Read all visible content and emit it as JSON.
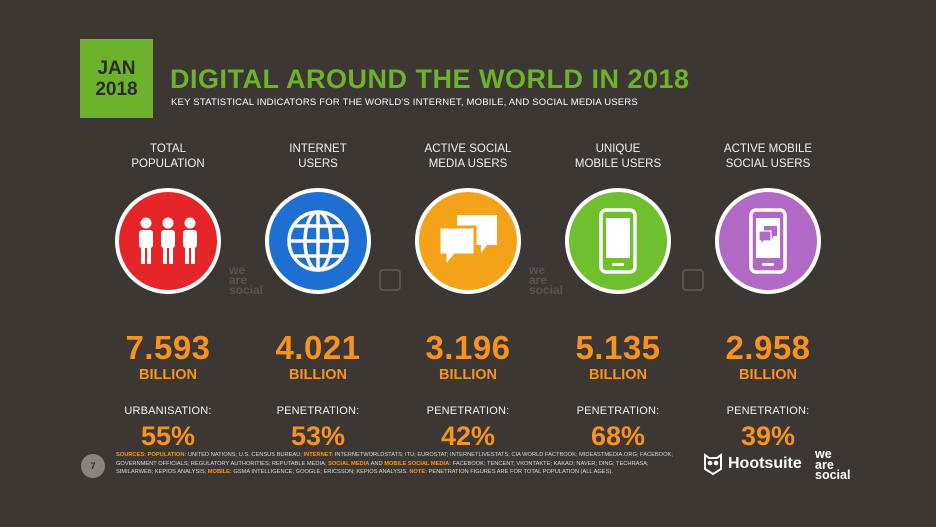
{
  "badge": {
    "month": "JAN",
    "year": "2018"
  },
  "title": "DIGITAL AROUND THE WORLD IN 2018",
  "subtitle": "KEY STATISTICAL INDICATORS FOR THE WORLD'S INTERNET, MOBILE, AND SOCIAL MEDIA USERS",
  "colors": {
    "green": "#6cb32b",
    "orange": "#f7931e",
    "red": "#e52528",
    "blue": "#1f6fd2",
    "amber": "#f5a21b",
    "lime": "#6fbf2f",
    "purple": "#b269c5"
  },
  "columns": [
    {
      "label": "TOTAL\nPOPULATION",
      "icon": "people-icon",
      "color": "#e52528",
      "value": "7.593",
      "unit": "BILLION",
      "metric_label": "URBANISATION:",
      "metric_value": "55%"
    },
    {
      "label": "INTERNET\nUSERS",
      "icon": "globe-icon",
      "color": "#1f6fd2",
      "value": "4.021",
      "unit": "BILLION",
      "metric_label": "PENETRATION:",
      "metric_value": "53%"
    },
    {
      "label": "ACTIVE SOCIAL\nMEDIA USERS",
      "icon": "chat-bubbles-icon",
      "color": "#f5a21b",
      "value": "3.196",
      "unit": "BILLION",
      "metric_label": "PENETRATION:",
      "metric_value": "42%"
    },
    {
      "label": "UNIQUE\nMOBILE USERS",
      "icon": "smartphone-icon",
      "color": "#6fbf2f",
      "value": "5.135",
      "unit": "BILLION",
      "metric_label": "PENETRATION:",
      "metric_value": "68%"
    },
    {
      "label": "ACTIVE MOBILE\nSOCIAL USERS",
      "icon": "mobile-social-icon",
      "color": "#b269c5",
      "value": "2.958",
      "unit": "BILLION",
      "metric_label": "PENETRATION:",
      "metric_value": "39%"
    }
  ],
  "watermark": {
    "text_1": "we",
    "text_2": "are",
    "text_3": "social"
  },
  "footer": {
    "page_number": "7",
    "sources": {
      "h1": "SOURCES: POPULATION:",
      "t1": " UNITED NATIONS; U.S. CENSUS BUREAU; ",
      "h2": "INTERNET:",
      "t2": " INTERNETWORLDSTATS; ITU; EUROSTAT; INTERNETLIVESTATS; CIA WORLD FACTBOOK; MIDEASTMEDIA.ORG; FACEBOOK; GOVERNMENT OFFICIALS; REGULATORY AUTHORITIES; REPUTABLE MEDIA; ",
      "h3": "SOCIAL MEDIA",
      "t3": " AND ",
      "h4": "MOBILE SOCIAL MEDIA:",
      "t4": " FACEBOOK; TENCENT; VKONTAKTE; KAKAO; NAVER; DING; TECHRASA; SIMILARWEB; KEPIOS ANALYSIS; ",
      "h5": "MOBILE:",
      "t5": " GSMA INTELLIGENCE; GOOGLE; ERICSSON; KEPIOS ANALYSIS. ",
      "h6": "NOTE:",
      "t6": " PENETRATION FIGURES ARE FOR TOTAL POPULATION (ALL AGES)."
    },
    "hootsuite": "Hootsuite",
    "was_1": "we",
    "was_2": "are",
    "was_3": "social"
  }
}
